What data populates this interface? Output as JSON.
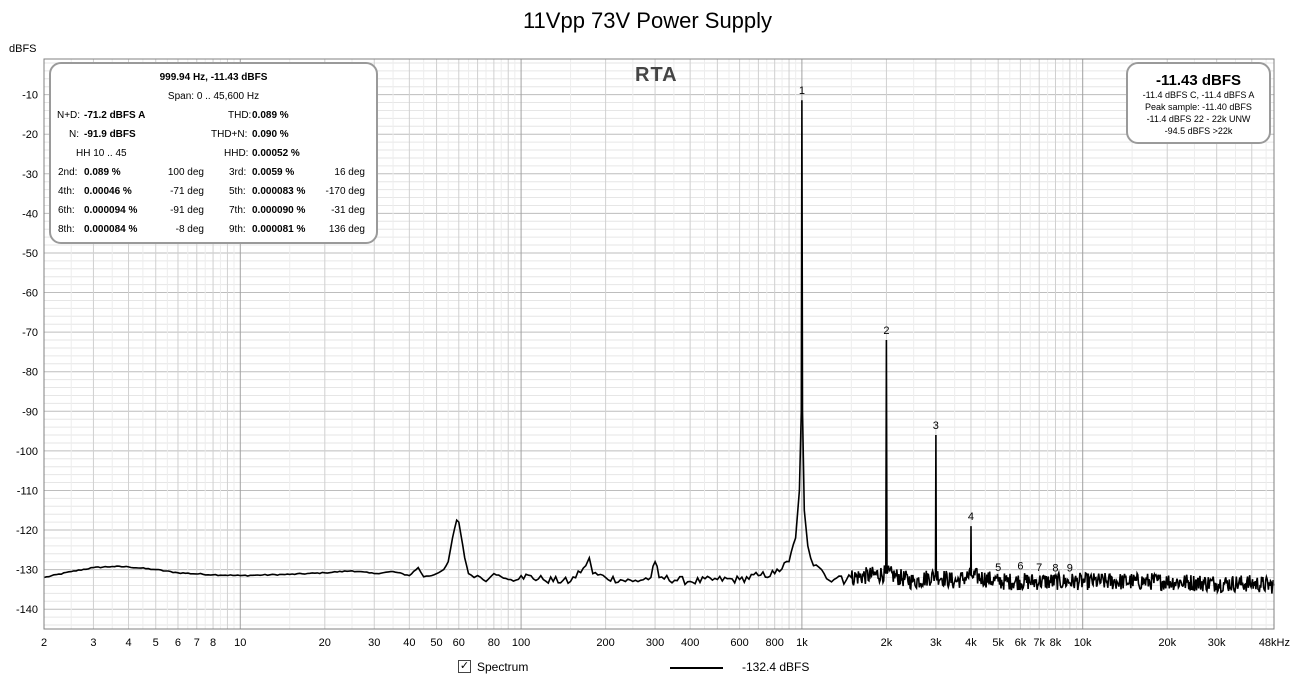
{
  "chart_data": {
    "type": "line",
    "title": "11Vpp 73V Power Supply",
    "ylabel": "dBFS",
    "xlabel": "",
    "x_scale": "log",
    "xlim": [
      2,
      48000
    ],
    "ylim": [
      -145,
      -1
    ],
    "y_ticks": [
      -10,
      -20,
      -30,
      -40,
      -50,
      -60,
      -70,
      -80,
      -90,
      -100,
      -110,
      -120,
      -130,
      -140
    ],
    "x_ticks": [
      {
        "v": 2,
        "t": "2"
      },
      {
        "v": 3,
        "t": "3"
      },
      {
        "v": 4,
        "t": "4"
      },
      {
        "v": 5,
        "t": "5"
      },
      {
        "v": 6,
        "t": "6"
      },
      {
        "v": 7,
        "t": "7"
      },
      {
        "v": 8,
        "t": "8"
      },
      {
        "v": 10,
        "t": "10"
      },
      {
        "v": 20,
        "t": "20"
      },
      {
        "v": 30,
        "t": "30"
      },
      {
        "v": 40,
        "t": "40"
      },
      {
        "v": 50,
        "t": "50"
      },
      {
        "v": 60,
        "t": "60"
      },
      {
        "v": 80,
        "t": "80"
      },
      {
        "v": 100,
        "t": "100"
      },
      {
        "v": 200,
        "t": "200"
      },
      {
        "v": 300,
        "t": "300"
      },
      {
        "v": 400,
        "t": "400"
      },
      {
        "v": 600,
        "t": "600"
      },
      {
        "v": 800,
        "t": "800"
      },
      {
        "v": 1000,
        "t": "1k"
      },
      {
        "v": 2000,
        "t": "2k"
      },
      {
        "v": 3000,
        "t": "3k"
      },
      {
        "v": 4000,
        "t": "4k"
      },
      {
        "v": 5000,
        "t": "5k"
      },
      {
        "v": 6000,
        "t": "6k"
      },
      {
        "v": 7000,
        "t": "7k"
      },
      {
        "v": 8000,
        "t": "8k"
      },
      {
        "v": 10000,
        "t": "10k"
      },
      {
        "v": 20000,
        "t": "20k"
      },
      {
        "v": 30000,
        "t": "30k"
      },
      {
        "v": 48000,
        "t": "48kHz"
      }
    ],
    "grid": true,
    "series": [
      {
        "name": "Spectrum",
        "color": "#000000",
        "noise_floor_dbfs": -132.4,
        "x": [
          2,
          2.5,
          3,
          3.5,
          4,
          5,
          6,
          8,
          10,
          15,
          20,
          25,
          30,
          35,
          40,
          43,
          45,
          48,
          50,
          53,
          55,
          57,
          59,
          60,
          61,
          63,
          65,
          68,
          70,
          75,
          80,
          90,
          100,
          120,
          150,
          170,
          175,
          180,
          200,
          250,
          290,
          300,
          310,
          400,
          500,
          600,
          700,
          800,
          900,
          950,
          980,
          995,
          1000,
          1005,
          1020,
          1050,
          1100,
          1200,
          1500,
          1990,
          2000,
          2010,
          2500,
          2990,
          3000,
          3010,
          3500,
          3990,
          4000,
          4010,
          5000,
          7000,
          10000,
          15000,
          20000,
          30000,
          40000,
          48000
        ],
        "y": [
          -132,
          -130.5,
          -129.5,
          -129.2,
          -129.3,
          -130,
          -130.8,
          -131.3,
          -131.5,
          -131.2,
          -130.8,
          -130.3,
          -131,
          -130.5,
          -131.5,
          -129.5,
          -131.8,
          -131.5,
          -131,
          -130,
          -128,
          -122,
          -117.5,
          -118,
          -121,
          -127,
          -131,
          -132,
          -131.5,
          -133,
          -131,
          -132.5,
          -131.5,
          -132.5,
          -133,
          -129,
          -127,
          -131,
          -132,
          -133,
          -132,
          -128,
          -132,
          -133,
          -132.5,
          -132.5,
          -131.5,
          -131,
          -128,
          -122,
          -110,
          -90,
          -11.4,
          -90,
          -115,
          -124,
          -129,
          -131,
          -132,
          -131,
          -72,
          -131,
          -133,
          -131.5,
          -96,
          -131.5,
          -133,
          -131.5,
          -119,
          -131.5,
          -133,
          -133,
          -133,
          -133,
          -133,
          -133.5,
          -133.5,
          -134
        ]
      }
    ],
    "harmonic_markers": [
      {
        "label": "1",
        "freq": 1000,
        "level": -11.4
      },
      {
        "label": "2",
        "freq": 2000,
        "level": -72
      },
      {
        "label": "3",
        "freq": 3000,
        "level": -96
      },
      {
        "label": "4",
        "freq": 4000,
        "level": -119
      },
      {
        "label": "5",
        "freq": 5000,
        "level": -131.8
      },
      {
        "label": "6",
        "freq": 6000,
        "level": -131.5
      },
      {
        "label": "7",
        "freq": 7000,
        "level": -131.8
      },
      {
        "label": "8",
        "freq": 8000,
        "level": -132
      },
      {
        "label": "9",
        "freq": 9000,
        "level": -132
      }
    ]
  },
  "rta_label": "RTA",
  "stats": {
    "header1": "999.94 Hz, -11.43 dBFS",
    "header2": "Span: 0 .. 45,600 Hz",
    "nd_label": "N+D:",
    "nd_value": "-71.2 dBFS A",
    "thd_label": "THD:",
    "thd_value": "0.089 %",
    "n_label": "N:",
    "n_value": "-91.9 dBFS",
    "thdn_label": "THD+N:",
    "thdn_value": "0.090 %",
    "hh_label": "HH 10 .. 45",
    "hhd_label": "HHD:",
    "hhd_value": "0.00052 %",
    "harmonics": [
      {
        "l1": "2nd:",
        "v1": "0.089 %",
        "d1": "100 deg",
        "l2": "3rd:",
        "v2": "0.0059 %",
        "d2": "16 deg"
      },
      {
        "l1": "4th:",
        "v1": "0.00046 %",
        "d1": "-71 deg",
        "l2": "5th:",
        "v2": "0.000083 %",
        "d2": "-170 deg"
      },
      {
        "l1": "6th:",
        "v1": "0.000094 %",
        "d1": "-91 deg",
        "l2": "7th:",
        "v2": "0.000090 %",
        "d2": "-31 deg"
      },
      {
        "l1": "8th:",
        "v1": "0.000084 %",
        "d1": "-8 deg",
        "l2": "9th:",
        "v2": "0.000081 %",
        "d2": "136 deg"
      }
    ]
  },
  "level": {
    "main": "-11.43 dBFS",
    "line1": "-11.4 dBFS C, -11.4 dBFS A",
    "line2": "Peak sample: -11.40 dBFS",
    "line3": "-11.4 dBFS 22 - 22k UNW",
    "line4": "-94.5 dBFS >22k"
  },
  "legend": {
    "checked": true,
    "check_mark": "✓",
    "label": "Spectrum",
    "value": "-132.4 dBFS"
  }
}
